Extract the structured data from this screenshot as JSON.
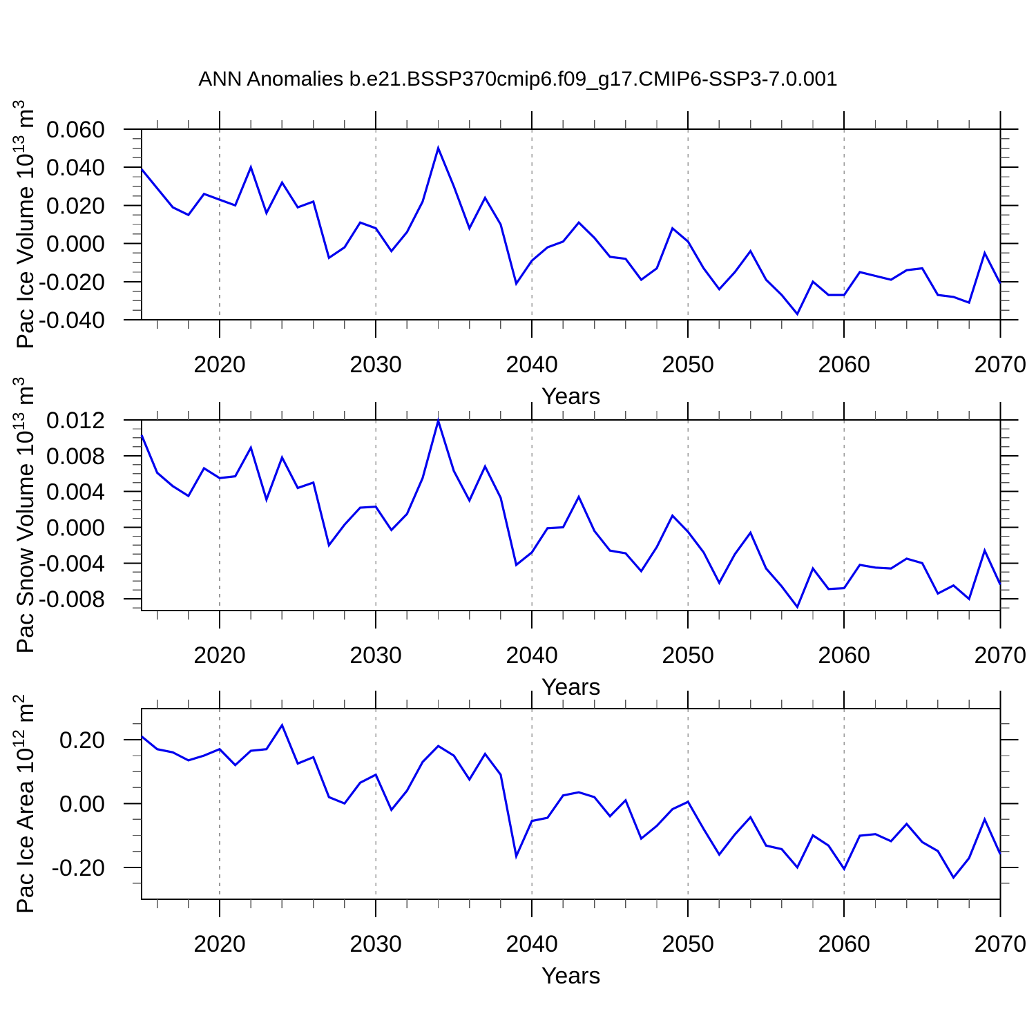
{
  "title": "ANN Anomalies b.e21.BSSP370cmip6.f09_g17.CMIP6-SSP3-7.0.001",
  "xlabel": "Years",
  "line_color": "#0000ee",
  "axis_color": "#000000",
  "minor_tick_color": "#555555",
  "grid_color": "#999999",
  "years": [
    2015,
    2016,
    2017,
    2018,
    2019,
    2020,
    2021,
    2022,
    2023,
    2024,
    2025,
    2026,
    2027,
    2028,
    2029,
    2030,
    2031,
    2032,
    2033,
    2034,
    2035,
    2036,
    2037,
    2038,
    2039,
    2040,
    2041,
    2042,
    2043,
    2044,
    2045,
    2046,
    2047,
    2048,
    2049,
    2050,
    2051,
    2052,
    2053,
    2054,
    2055,
    2056,
    2057,
    2058,
    2059,
    2060,
    2061,
    2062,
    2063,
    2064,
    2065,
    2066,
    2067,
    2068,
    2069,
    2070
  ],
  "chart_data": [
    {
      "id": "pac-ice-volume",
      "type": "line",
      "title": "ANN Anomalies b.e21.BSSP370cmip6.f09_g17.CMIP6-SSP3-7.0.001",
      "xlabel": "Years",
      "ylabel": "Pac Ice Volume 10^13 m^3",
      "ylabel_parts": [
        {
          "t": "Pac Ice Volume 10"
        },
        {
          "t": "13",
          "sup": true
        },
        {
          "t": " m"
        },
        {
          "t": "3",
          "sup": true
        }
      ],
      "x_start": 2015,
      "x_end": 2070,
      "x_step": 1,
      "values": [
        0.039,
        0.029,
        0.019,
        0.015,
        0.026,
        0.023,
        0.02,
        0.04,
        0.016,
        0.032,
        0.019,
        0.022,
        -0.0075,
        -0.002,
        0.011,
        0.008,
        -0.004,
        0.006,
        0.022,
        0.05,
        0.03,
        0.008,
        0.024,
        0.01,
        -0.021,
        -0.009,
        -0.002,
        0.001,
        0.011,
        0.003,
        -0.007,
        -0.008,
        -0.019,
        -0.013,
        0.008,
        0.001,
        -0.013,
        -0.024,
        -0.015,
        -0.004,
        -0.019,
        -0.027,
        -0.037,
        -0.02,
        -0.027,
        -0.027,
        -0.015,
        -0.017,
        -0.019,
        -0.014,
        -0.013,
        -0.027,
        -0.028,
        -0.031,
        -0.005,
        -0.021
      ],
      "ylim": [
        -0.04,
        0.06
      ],
      "ytick_values": [
        0.06,
        0.04,
        0.02,
        0.0,
        -0.02,
        -0.04
      ],
      "ytick_labels": [
        "0.060",
        "0.040",
        "0.020",
        "0.000",
        "-0.020",
        "-0.040"
      ],
      "y_minor_step": 0.005,
      "xtick_values": [
        2020,
        2030,
        2040,
        2050,
        2060,
        2070
      ],
      "xtick_labels": [
        "2020",
        "2030",
        "2040",
        "2050",
        "2060",
        "2070"
      ],
      "x_minor_step": 2,
      "grid_x": [
        2020,
        2030,
        2040,
        2050,
        2060
      ]
    },
    {
      "id": "pac-snow-volume",
      "type": "line",
      "title": "ANN Anomalies b.e21.BSSP370cmip6.f09_g17.CMIP6-SSP3-7.0.001",
      "xlabel": "Years",
      "ylabel": "Pac Snow Volume 10^13 m^3",
      "ylabel_parts": [
        {
          "t": "Pac Snow Volume 10"
        },
        {
          "t": "13",
          "sup": true
        },
        {
          "t": " m"
        },
        {
          "t": "3",
          "sup": true
        }
      ],
      "x_start": 2015,
      "x_end": 2070,
      "x_step": 1,
      "values": [
        0.0103,
        0.0061,
        0.0046,
        0.0035,
        0.0066,
        0.0055,
        0.0057,
        0.0089,
        0.0031,
        0.0078,
        0.0044,
        0.005,
        -0.002,
        0.0003,
        0.0022,
        0.0023,
        -0.0003,
        0.0015,
        0.0055,
        0.0119,
        0.0063,
        0.003,
        0.0068,
        0.0033,
        -0.0042,
        -0.0028,
        -0.0001,
        0.0,
        0.0034,
        -0.0004,
        -0.0026,
        -0.0029,
        -0.0049,
        -0.0022,
        0.0013,
        -0.0005,
        -0.0028,
        -0.0062,
        -0.003,
        -0.0006,
        -0.0046,
        -0.0066,
        -0.0089,
        -0.0046,
        -0.0069,
        -0.0068,
        -0.0042,
        -0.0045,
        -0.0046,
        -0.0035,
        -0.004,
        -0.0074,
        -0.0065,
        -0.008,
        -0.0026,
        -0.0064
      ],
      "ylim": [
        -0.0093,
        0.012
      ],
      "ytick_values": [
        0.012,
        0.008,
        0.004,
        0.0,
        -0.004,
        -0.008
      ],
      "ytick_labels": [
        "0.012",
        "0.008",
        "0.004",
        "0.000",
        "-0.004",
        "-0.008"
      ],
      "y_minor_step": 0.001,
      "xtick_values": [
        2020,
        2030,
        2040,
        2050,
        2060,
        2070
      ],
      "xtick_labels": [
        "2020",
        "2030",
        "2040",
        "2050",
        "2060",
        "2070"
      ],
      "x_minor_step": 2,
      "grid_x": [
        2020,
        2030,
        2040,
        2050,
        2060
      ]
    },
    {
      "id": "pac-ice-area",
      "type": "line",
      "title": "ANN Anomalies b.e21.BSSP370cmip6.f09_g17.CMIP6-SSP3-7.0.001",
      "xlabel": "Years",
      "ylabel": "Pac Ice Area 10^12 m^2",
      "ylabel_parts": [
        {
          "t": "Pac Ice Area 10"
        },
        {
          "t": "12",
          "sup": true
        },
        {
          "t": " m"
        },
        {
          "t": "2",
          "sup": true
        }
      ],
      "x_start": 2015,
      "x_end": 2070,
      "x_step": 1,
      "values": [
        0.21,
        0.17,
        0.16,
        0.135,
        0.15,
        0.17,
        0.12,
        0.165,
        0.17,
        0.245,
        0.125,
        0.145,
        0.02,
        0.0,
        0.065,
        0.09,
        -0.02,
        0.04,
        0.13,
        0.18,
        0.15,
        0.075,
        0.155,
        0.09,
        -0.165,
        -0.055,
        -0.045,
        0.025,
        0.035,
        0.02,
        -0.04,
        0.01,
        -0.11,
        -0.07,
        -0.018,
        0.005,
        -0.08,
        -0.16,
        -0.097,
        -0.043,
        -0.132,
        -0.143,
        -0.2,
        -0.1,
        -0.132,
        -0.205,
        -0.101,
        -0.096,
        -0.118,
        -0.064,
        -0.121,
        -0.149,
        -0.232,
        -0.171,
        -0.05,
        -0.159
      ],
      "ylim": [
        -0.3,
        0.297
      ],
      "ytick_values": [
        0.2,
        0.0,
        -0.2
      ],
      "ytick_labels": [
        "0.20",
        "0.00",
        "-0.20"
      ],
      "y_minor_step": 0.05,
      "xtick_values": [
        2020,
        2030,
        2040,
        2050,
        2060,
        2070
      ],
      "xtick_labels": [
        "2020",
        "2030",
        "2040",
        "2050",
        "2060",
        "2070"
      ],
      "x_minor_step": 2,
      "grid_x": [
        2020,
        2030,
        2040,
        2050,
        2060
      ]
    }
  ]
}
